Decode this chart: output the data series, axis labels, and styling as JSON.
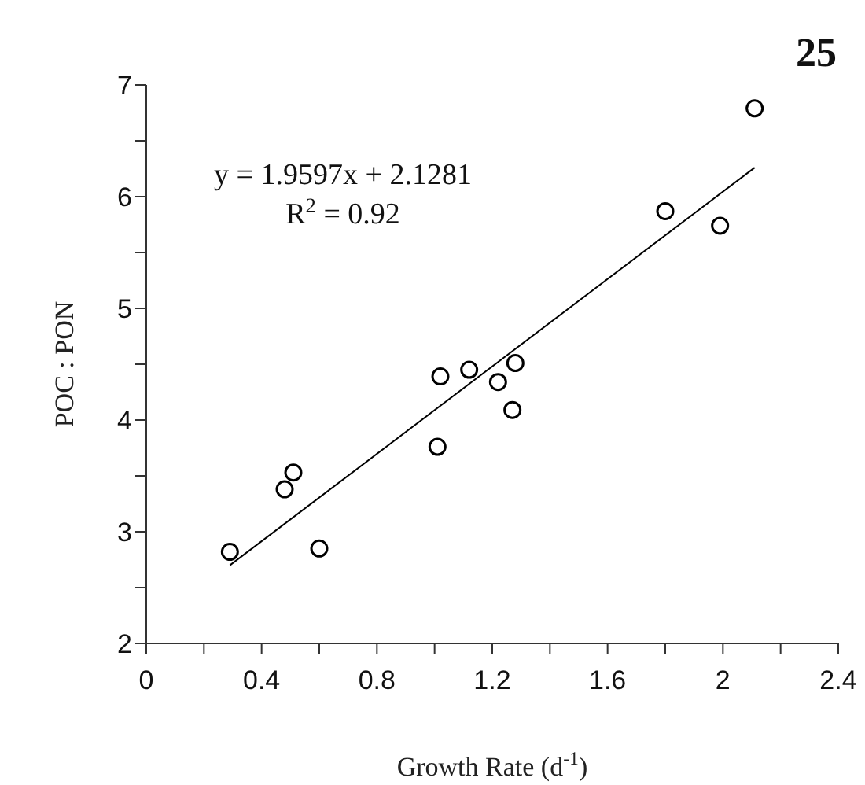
{
  "chart_data": {
    "type": "scatter",
    "xlabel": "Growth Rate (d$^{-1}$)",
    "ylabel": "POC : PON",
    "annotations": [
      "25",
      "y = 1.9597x + 2.1281",
      "R$^{2}$ = 0.92"
    ],
    "xlim": [
      0,
      2.4
    ],
    "ylim": [
      2,
      7
    ],
    "xticks": [
      0,
      {
        "value": 0.2,
        "label": null
      },
      0.4,
      {
        "value": 0.6,
        "label": null
      },
      0.8,
      {
        "value": 1.0,
        "label": null
      },
      1.2,
      {
        "value": 1.4,
        "label": null
      },
      1.6,
      {
        "value": 1.8,
        "label": null
      },
      2,
      {
        "value": 2.2,
        "label": null
      },
      2.4
    ],
    "yticks": [
      2,
      {
        "value": 2.5,
        "label": null
      },
      3,
      {
        "value": 3.5,
        "label": null
      },
      4,
      {
        "value": 4.5,
        "label": null
      },
      5,
      {
        "value": 5.5,
        "label": null
      },
      6,
      {
        "value": 6.5,
        "label": null
      },
      7
    ],
    "series": [
      {
        "type": "scatter",
        "color": "#000000",
        "marker": "circle",
        "x": [
          0.29,
          0.48,
          0.51,
          0.6,
          1.01,
          1.02,
          1.12,
          1.22,
          1.27,
          1.28,
          1.8,
          1.99,
          2.11
        ],
        "values": [
          2.82,
          3.38,
          3.53,
          2.85,
          3.76,
          4.39,
          4.45,
          4.34,
          4.09,
          4.51,
          5.87,
          5.74,
          6.79
        ]
      },
      {
        "type": "line",
        "color": "#000000",
        "marker": "none",
        "line_style": "solid",
        "x": [
          0.29,
          2.11
        ],
        "values": [
          2.7,
          6.26
        ]
      }
    ]
  }
}
